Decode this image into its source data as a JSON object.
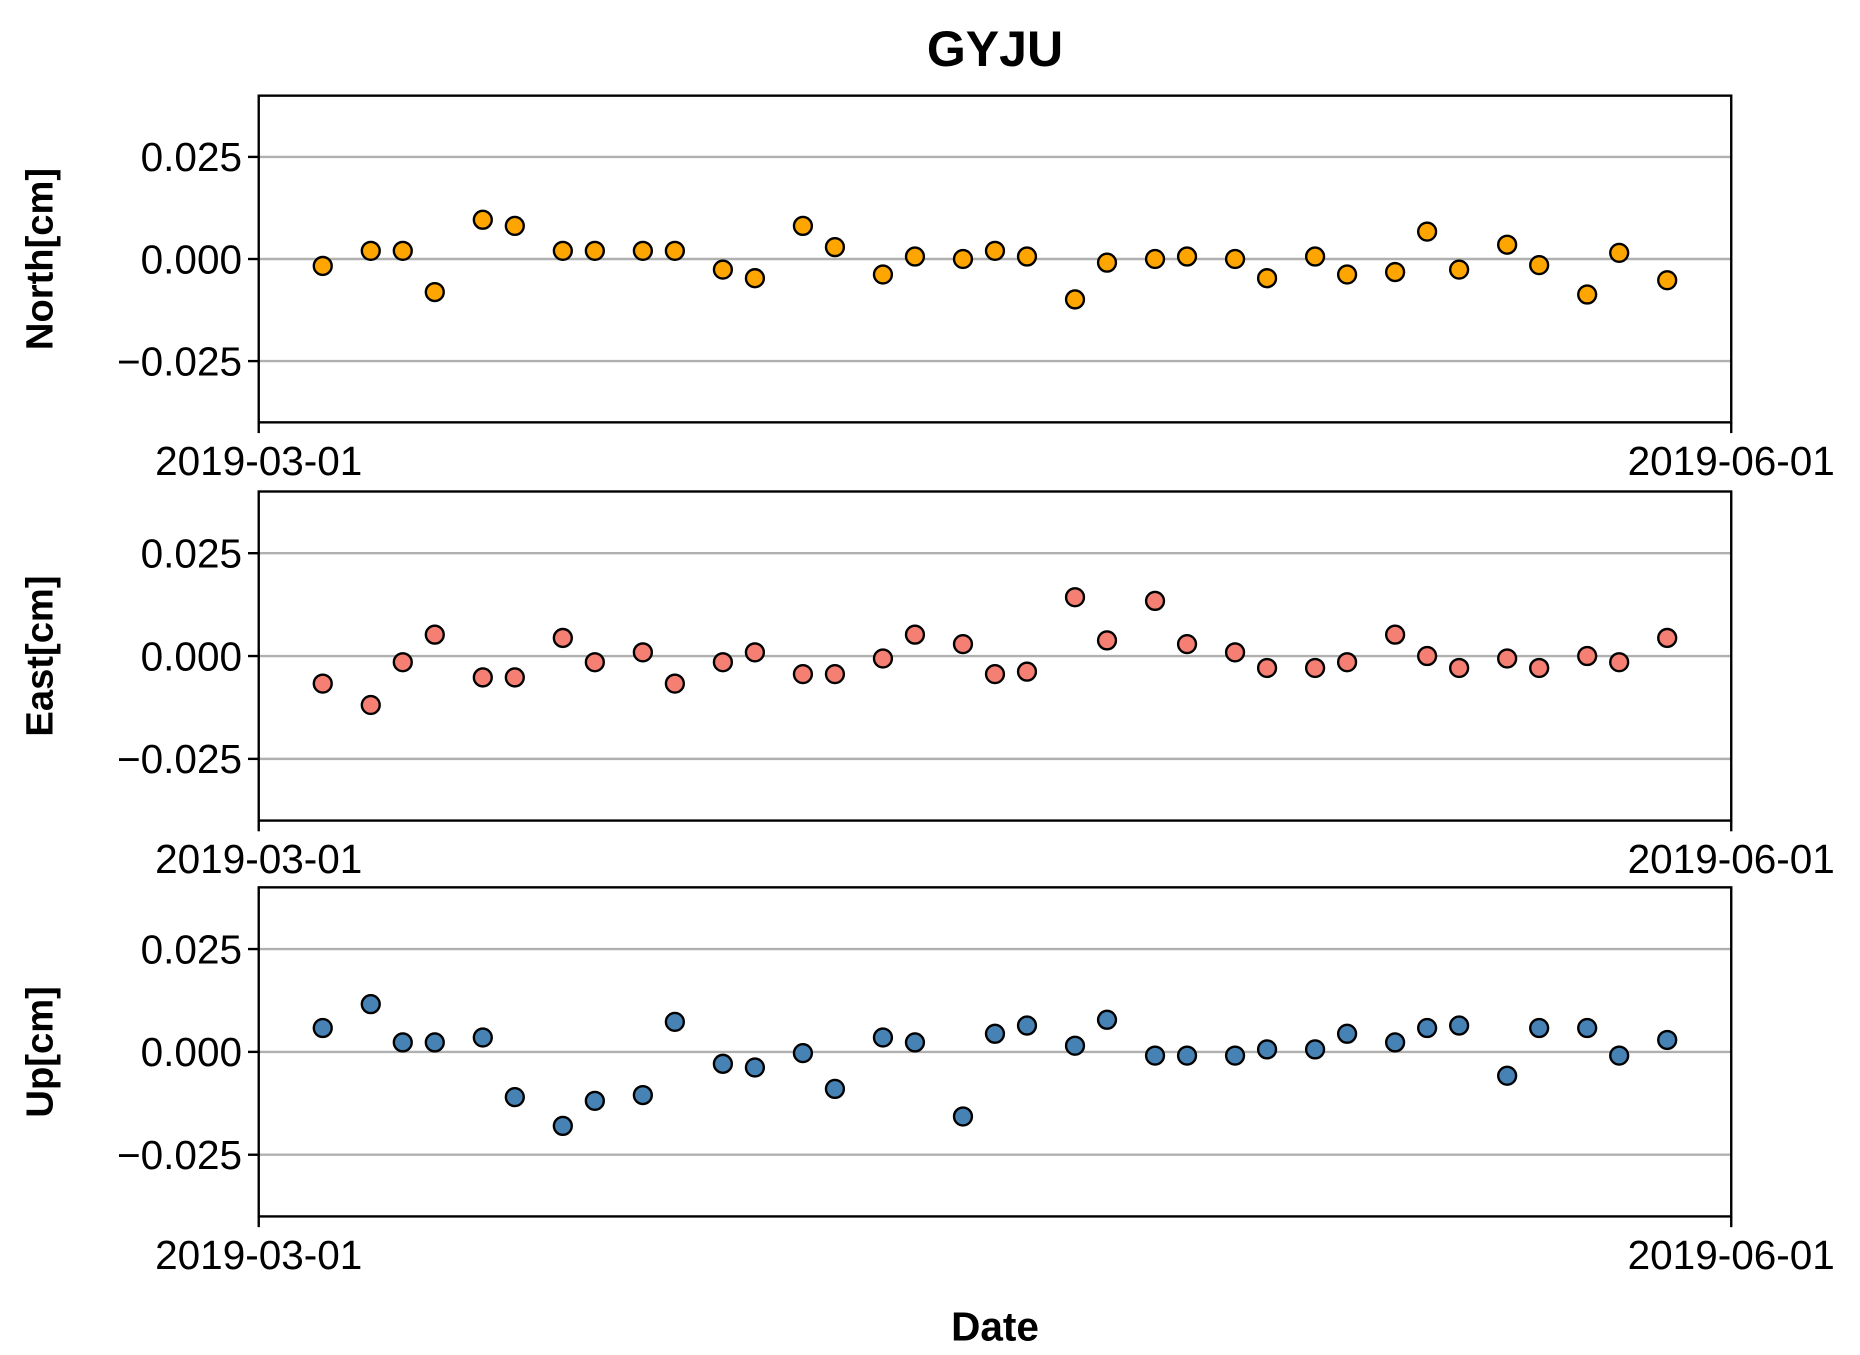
{
  "chart_data": [
    {
      "type": "scatter",
      "title": "GYJU",
      "ylabel": "North[cm]",
      "x": [
        "2019-03-05",
        "2019-03-08",
        "2019-03-10",
        "2019-03-12",
        "2019-03-15",
        "2019-03-17",
        "2019-03-20",
        "2019-03-22",
        "2019-03-25",
        "2019-03-27",
        "2019-03-30",
        "2019-04-01",
        "2019-04-04",
        "2019-04-06",
        "2019-04-09",
        "2019-04-11",
        "2019-04-14",
        "2019-04-16",
        "2019-04-18",
        "2019-04-21",
        "2019-04-23",
        "2019-04-26",
        "2019-04-28",
        "2019-05-01",
        "2019-05-03",
        "2019-05-06",
        "2019-05-08",
        "2019-05-11",
        "2019-05-13",
        "2019-05-15",
        "2019-05-18",
        "2019-05-20",
        "2019-05-23",
        "2019-05-25",
        "2019-05-28"
      ],
      "values": [
        -0.0017,
        0.002,
        0.002,
        -0.0081,
        0.0096,
        0.0081,
        0.002,
        0.002,
        0.002,
        0.002,
        -0.0026,
        -0.0047,
        0.0081,
        0.0029,
        -0.0038,
        0.0006,
        0,
        0.002,
        0.0006,
        -0.0099,
        -0.0009,
        0,
        0.0006,
        0,
        -0.0047,
        0.0006,
        -0.0038,
        -0.0032,
        0.0067,
        -0.0026,
        0.0035,
        -0.0015,
        -0.0087,
        0.0015,
        -0.0052
      ],
      "color": "#ffa500",
      "xlim": [
        "2019-03-01",
        "2019-06-01"
      ],
      "xticks": [
        "2019-03-01",
        "2019-06-01"
      ],
      "ylim": [
        -0.04,
        0.04
      ],
      "yticks": [
        {
          "value": -0.025,
          "label": "−0.025"
        },
        {
          "value": 0,
          "label": "0.000"
        },
        {
          "value": 0.025,
          "label": "0.025"
        }
      ],
      "grid": true
    },
    {
      "type": "scatter",
      "ylabel": "East[cm]",
      "x": [
        "2019-03-05",
        "2019-03-08",
        "2019-03-10",
        "2019-03-12",
        "2019-03-15",
        "2019-03-17",
        "2019-03-20",
        "2019-03-22",
        "2019-03-25",
        "2019-03-27",
        "2019-03-30",
        "2019-04-01",
        "2019-04-04",
        "2019-04-06",
        "2019-04-09",
        "2019-04-11",
        "2019-04-14",
        "2019-04-16",
        "2019-04-18",
        "2019-04-21",
        "2019-04-23",
        "2019-04-26",
        "2019-04-28",
        "2019-05-01",
        "2019-05-03",
        "2019-05-06",
        "2019-05-08",
        "2019-05-11",
        "2019-05-13",
        "2019-05-15",
        "2019-05-18",
        "2019-05-20",
        "2019-05-23",
        "2019-05-25",
        "2019-05-28"
      ],
      "values": [
        -0.0067,
        -0.0119,
        -0.0015,
        0.0052,
        -0.0052,
        -0.0052,
        0.0044,
        -0.0015,
        0.0009,
        -0.0067,
        -0.0015,
        0.0009,
        -0.0044,
        -0.0044,
        -0.0006,
        0.0052,
        0.0029,
        -0.0044,
        -0.0038,
        0.0143,
        0.0038,
        0.0134,
        0.0029,
        0.0009,
        -0.0029,
        -0.0029,
        -0.0015,
        0.0052,
        0,
        -0.0029,
        -0.0006,
        -0.0029,
        0,
        -0.0015,
        0.0044
      ],
      "color": "#f47f72",
      "xlim": [
        "2019-03-01",
        "2019-06-01"
      ],
      "xticks": [
        "2019-03-01",
        "2019-06-01"
      ],
      "ylim": [
        -0.04,
        0.04
      ],
      "yticks": [
        {
          "value": -0.025,
          "label": "−0.025"
        },
        {
          "value": 0,
          "label": "0.000"
        },
        {
          "value": 0.025,
          "label": "0.025"
        }
      ],
      "grid": true
    },
    {
      "type": "scatter",
      "ylabel": "Up[cm]",
      "xlabel": "Date",
      "x": [
        "2019-03-05",
        "2019-03-08",
        "2019-03-10",
        "2019-03-12",
        "2019-03-15",
        "2019-03-17",
        "2019-03-20",
        "2019-03-22",
        "2019-03-25",
        "2019-03-27",
        "2019-03-30",
        "2019-04-01",
        "2019-04-04",
        "2019-04-06",
        "2019-04-09",
        "2019-04-11",
        "2019-04-14",
        "2019-04-16",
        "2019-04-18",
        "2019-04-21",
        "2019-04-23",
        "2019-04-26",
        "2019-04-28",
        "2019-05-01",
        "2019-05-03",
        "2019-05-06",
        "2019-05-08",
        "2019-05-11",
        "2019-05-13",
        "2019-05-15",
        "2019-05-18",
        "2019-05-20",
        "2019-05-23",
        "2019-05-25",
        "2019-05-28"
      ],
      "values": [
        0.0058,
        0.0116,
        0.0023,
        0.0023,
        0.0035,
        -0.011,
        -0.018,
        -0.0119,
        -0.0105,
        0.0073,
        -0.0029,
        -0.0038,
        -0.0003,
        -0.009,
        0.0035,
        0.0023,
        -0.0157,
        0.0044,
        0.0064,
        0.0015,
        0.0078,
        -0.0009,
        -0.0009,
        -0.0009,
        0.0006,
        0.0006,
        0.0044,
        0.0023,
        0.0058,
        0.0064,
        -0.0058,
        0.0058,
        0.0058,
        -0.0009,
        0.0029
      ],
      "color": "#4682b4",
      "xlim": [
        "2019-03-01",
        "2019-06-01"
      ],
      "xticks": [
        "2019-03-01",
        "2019-06-01"
      ],
      "ylim": [
        -0.04,
        0.04
      ],
      "yticks": [
        {
          "value": -0.025,
          "label": "−0.025"
        },
        {
          "value": 0,
          "label": "0.000"
        },
        {
          "value": 0.025,
          "label": "0.025"
        }
      ],
      "grid": true
    }
  ]
}
